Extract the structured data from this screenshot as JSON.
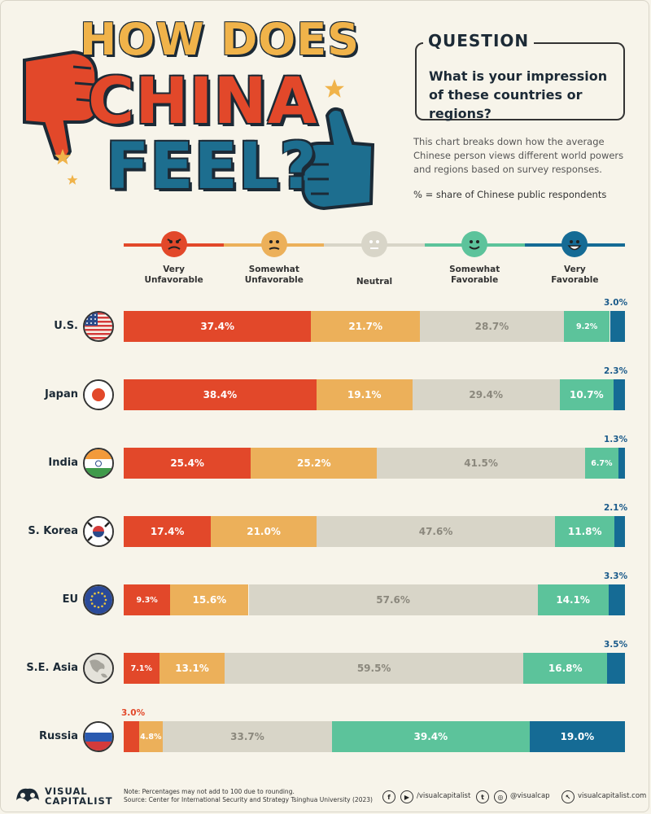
{
  "title": {
    "line1": "HOW DOES",
    "line2": "CHINA",
    "line3": "FEEL?"
  },
  "question": {
    "label": "QUESTION",
    "text": "What is your impression of these countries or regions?"
  },
  "description": "This chart breaks down how the average Chinese person views different world powers and regions based on survey responses.",
  "unit_note": "% = share of Chinese public respondents",
  "colors": {
    "very_unfavorable": "#e2482a",
    "somewhat_unfavorable": "#ecb05a",
    "neutral": "#d8d5c8",
    "somewhat_favorable": "#5cc39b",
    "very_favorable": "#156b95"
  },
  "chart_data": {
    "type": "bar",
    "orientation": "horizontal",
    "stacked": true,
    "categories": [
      "U.S.",
      "Japan",
      "India",
      "S. Korea",
      "EU",
      "S.E. Asia",
      "Russia"
    ],
    "series": [
      {
        "name": "Very Unfavorable",
        "values": [
          37.4,
          38.4,
          25.4,
          17.4,
          9.3,
          7.1,
          3.0
        ]
      },
      {
        "name": "Somewhat Unfavorable",
        "values": [
          21.7,
          19.1,
          25.2,
          21.0,
          15.6,
          13.1,
          4.8
        ]
      },
      {
        "name": "Neutral",
        "values": [
          28.7,
          29.4,
          41.5,
          47.6,
          57.6,
          59.5,
          33.7
        ]
      },
      {
        "name": "Somewhat Favorable",
        "values": [
          9.2,
          10.7,
          6.7,
          11.8,
          14.1,
          16.8,
          39.4
        ]
      },
      {
        "name": "Very Favorable",
        "values": [
          3.0,
          2.3,
          1.3,
          2.1,
          3.3,
          3.5,
          19.0
        ]
      }
    ],
    "legend_labels": [
      [
        "Very",
        "Unfavorable"
      ],
      [
        "Somewhat",
        "Unfavorable"
      ],
      [
        "Neutral"
      ],
      [
        "Somewhat",
        "Favorable"
      ],
      [
        "Very",
        "Favorable"
      ]
    ],
    "flags": [
      "us-flag",
      "japan-flag",
      "india-flag",
      "south-korea-flag",
      "eu-flag",
      "globe-asia",
      "russia-flag"
    ]
  },
  "footer": {
    "logo_line1": "VISUAL",
    "logo_line2": "CAPITALIST",
    "note": "Note: Percentages may not add to 100 due to rounding.",
    "source": "Source: Center for International Security and Strategy Tsinghua University (2023)",
    "handle_fb_yt": "/visualcapitalist",
    "handle_tw_ig": "@visualcap",
    "website": "visualcapitalist.com"
  }
}
